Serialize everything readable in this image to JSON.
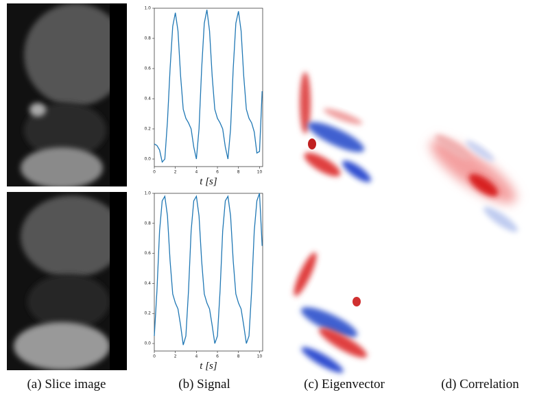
{
  "chart_data": [
    {
      "type": "line",
      "xlabel": "t [s]",
      "x": [
        0,
        0.25,
        0.5,
        0.75,
        1,
        1.25,
        1.5,
        1.75,
        2,
        2.25,
        2.5,
        2.75,
        3,
        3.25,
        3.5,
        3.75,
        4,
        4.25,
        4.5,
        4.75,
        5,
        5.25,
        5.5,
        5.75,
        6,
        6.25,
        6.5,
        6.75,
        7,
        7.25,
        7.5,
        7.75,
        8,
        8.25,
        8.5,
        8.75,
        9,
        9.25,
        9.5,
        9.75,
        10,
        10.25
      ],
      "values": [
        0.1,
        0.09,
        0.06,
        -0.02,
        0.0,
        0.25,
        0.6,
        0.88,
        0.97,
        0.85,
        0.55,
        0.33,
        0.27,
        0.24,
        0.2,
        0.08,
        0.0,
        0.2,
        0.6,
        0.9,
        0.99,
        0.85,
        0.55,
        0.33,
        0.27,
        0.24,
        0.2,
        0.08,
        0.0,
        0.2,
        0.6,
        0.9,
        0.98,
        0.85,
        0.55,
        0.33,
        0.27,
        0.24,
        0.18,
        0.04,
        0.05,
        0.45
      ],
      "color": "#1f77b4",
      "xlim": [
        0,
        10.3
      ],
      "ylim": [
        -0.05,
        1.0
      ],
      "xticks": [
        0,
        2,
        4,
        6,
        8,
        10
      ],
      "yticks": [
        {
          "value": 0,
          "label": "0.0"
        },
        0.2,
        0.4,
        0.6,
        0.8,
        {
          "value": 1,
          "label": "1.0"
        }
      ]
    },
    {
      "type": "line",
      "xlabel": "t [s]",
      "x": [
        0,
        0.25,
        0.5,
        0.75,
        1,
        1.25,
        1.5,
        1.75,
        2,
        2.25,
        2.5,
        2.75,
        3,
        3.25,
        3.5,
        3.75,
        4,
        4.25,
        4.5,
        4.75,
        5,
        5.25,
        5.5,
        5.75,
        6,
        6.25,
        6.5,
        6.75,
        7,
        7.25,
        7.5,
        7.75,
        8,
        8.25,
        8.5,
        8.75,
        9,
        9.25,
        9.5,
        9.75,
        10,
        10.25
      ],
      "values": [
        0.05,
        0.35,
        0.75,
        0.95,
        0.98,
        0.85,
        0.55,
        0.33,
        0.27,
        0.23,
        0.12,
        -0.01,
        0.05,
        0.35,
        0.75,
        0.95,
        0.98,
        0.85,
        0.55,
        0.33,
        0.27,
        0.23,
        0.12,
        0.0,
        0.05,
        0.35,
        0.75,
        0.95,
        0.98,
        0.85,
        0.55,
        0.33,
        0.27,
        0.23,
        0.12,
        0.0,
        0.05,
        0.35,
        0.75,
        0.95,
        1.0,
        0.65
      ],
      "color": "#1f77b4",
      "xlim": [
        0,
        10.3
      ],
      "ylim": [
        -0.05,
        1.0
      ],
      "xticks": [
        0,
        2,
        4,
        6,
        8,
        10
      ],
      "yticks": [
        {
          "value": 0,
          "label": "0.0"
        },
        0.2,
        0.4,
        0.6,
        0.8,
        {
          "value": 1,
          "label": "1.0"
        }
      ]
    }
  ],
  "captions": [
    "(a) Slice image",
    "(b) Signal",
    "(c) Eigenvector",
    "(d) Correlation"
  ]
}
